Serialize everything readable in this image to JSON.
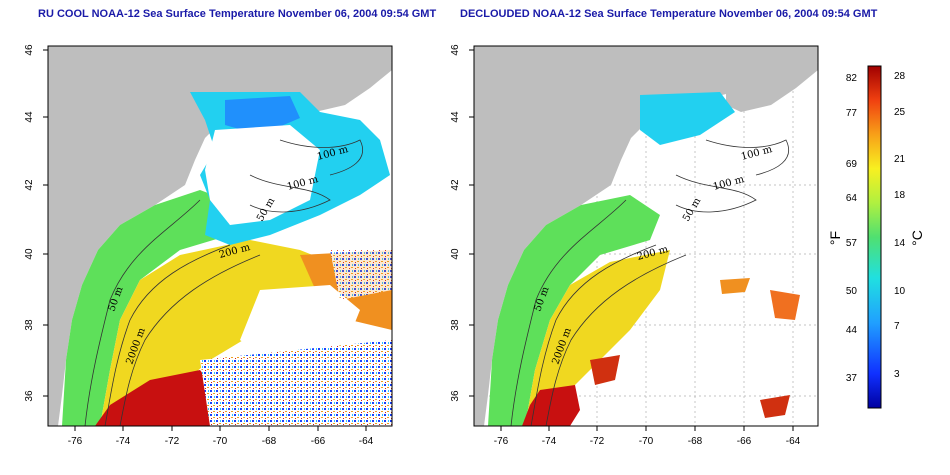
{
  "panels": [
    {
      "title": "RU COOL NOAA-12 Sea Surface Temperature November 06, 2004 09:54 GMT",
      "x_ticks": [
        "-76",
        "-74",
        "-72",
        "-70",
        "-68",
        "-66",
        "-64"
      ],
      "y_ticks": [
        "36",
        "38",
        "40",
        "42",
        "44",
        "46"
      ],
      "contour_labels": [
        "100 m",
        "100 m",
        "50 m",
        "200 m",
        "50 m",
        "2000 m"
      ]
    },
    {
      "title": "DECLOUDED NOAA-12 Sea Surface Temperature November 06, 2004 09:54 GMT",
      "x_ticks": [
        "-76",
        "-74",
        "-72",
        "-70",
        "-68",
        "-66",
        "-64"
      ],
      "y_ticks": [
        "36",
        "38",
        "40",
        "42",
        "44",
        "46"
      ],
      "contour_labels": [
        "100 m",
        "100 m",
        "50 m",
        "200 m",
        "50 m",
        "2000 m"
      ]
    }
  ],
  "colorbar": {
    "fahrenheit_label": "°F",
    "celsius_label": "°C",
    "fahrenheit_ticks": [
      "82",
      "77",
      "69",
      "64",
      "57",
      "50",
      "44",
      "37"
    ],
    "celsius_ticks": [
      "28",
      "25",
      "21",
      "18",
      "14",
      "10",
      "7",
      "3"
    ]
  },
  "colors": {
    "land": "#bebebe",
    "title": "#1a1aa8",
    "cold": "#2a2aff",
    "cool": "#22d8f0",
    "mid": "#5ee05a",
    "warm": "#f0e020",
    "hot": "#f08010",
    "hottest": "#c81010"
  }
}
